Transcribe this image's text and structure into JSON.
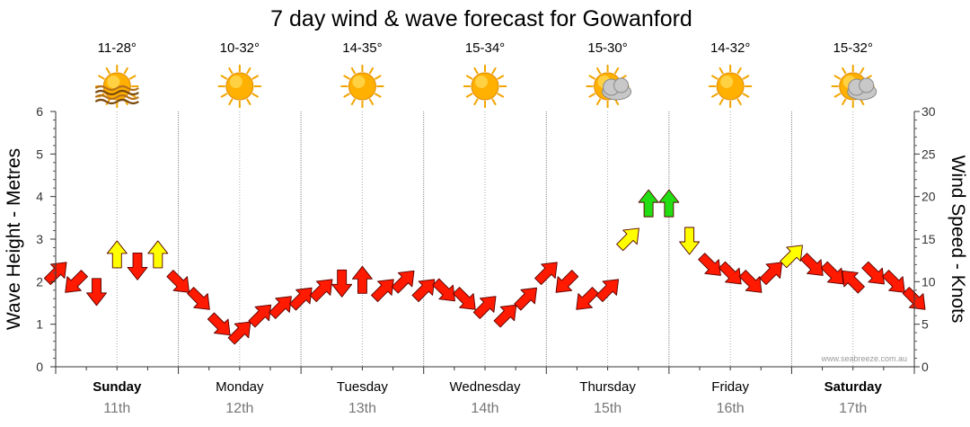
{
  "chart_data": {
    "type": "line",
    "title": "7 day wind & wave forecast for Gowanford",
    "ylabel": "Wave Height - Metres",
    "y2label": "Wind Speed - Knots",
    "ylim": [
      0,
      6
    ],
    "y2lim": [
      0,
      30
    ],
    "yticks": [
      "0",
      "1",
      "2",
      "3",
      "4",
      "5",
      "6"
    ],
    "y2ticks": [
      "0",
      "5",
      "10",
      "15",
      "20",
      "25",
      "30"
    ],
    "grid": "dotted vertical at 3-hour intervals, solid at midnight",
    "watermark": "www.seabreeze.com.au",
    "colors": {
      "low": "#ff1a00",
      "medium": "#ffff00",
      "high": "#22dd11",
      "arrow_outline": "#550000"
    },
    "days": [
      {
        "name": "Sunday",
        "date": "11th",
        "temp": "11-28°",
        "icon": "haze-sun-icon",
        "bold": true
      },
      {
        "name": "Monday",
        "date": "12th",
        "temp": "10-32°",
        "icon": "sun-icon",
        "bold": false
      },
      {
        "name": "Tuesday",
        "date": "13th",
        "temp": "14-35°",
        "icon": "sun-icon",
        "bold": false
      },
      {
        "name": "Wednesday",
        "date": "14th",
        "temp": "15-34°",
        "icon": "sun-icon",
        "bold": false
      },
      {
        "name": "Thursday",
        "date": "15th",
        "temp": "15-30°",
        "icon": "sun-cloud-icon",
        "bold": false
      },
      {
        "name": "Friday",
        "date": "16th",
        "temp": "14-32°",
        "icon": "sun-icon",
        "bold": false
      },
      {
        "name": "Saturday",
        "date": "17th",
        "temp": "15-32°",
        "icon": "sun-cloud-icon",
        "bold": true
      }
    ],
    "series": [
      {
        "name": "Wind speed (knots)",
        "x_hours": [
          0,
          4,
          8,
          12,
          16,
          20,
          24,
          28,
          32,
          36,
          40,
          44,
          48,
          52,
          56,
          60,
          64,
          68,
          72,
          76,
          80,
          84,
          88,
          92,
          96,
          100,
          104,
          108,
          112,
          116,
          120,
          124,
          128,
          132,
          136,
          140,
          144,
          148,
          152,
          156,
          160,
          164,
          168
        ],
        "knots": [
          11,
          10,
          9,
          13,
          12,
          13,
          10,
          8,
          5,
          4,
          6,
          7,
          8,
          9,
          10,
          10,
          9,
          10,
          9,
          9,
          8,
          7,
          6,
          8,
          11,
          10,
          8,
          9,
          15,
          19,
          19,
          15,
          12,
          11,
          10,
          11,
          13,
          12,
          11,
          10,
          11,
          10,
          8
        ],
        "direction_deg": [
          45,
          225,
          180,
          0,
          180,
          0,
          135,
          135,
          135,
          45,
          45,
          45,
          45,
          45,
          180,
          0,
          45,
          45,
          45,
          135,
          135,
          45,
          45,
          45,
          45,
          225,
          225,
          45,
          45,
          0,
          0,
          180,
          135,
          135,
          135,
          45,
          45,
          135,
          135,
          315,
          135,
          135,
          135
        ]
      }
    ]
  }
}
